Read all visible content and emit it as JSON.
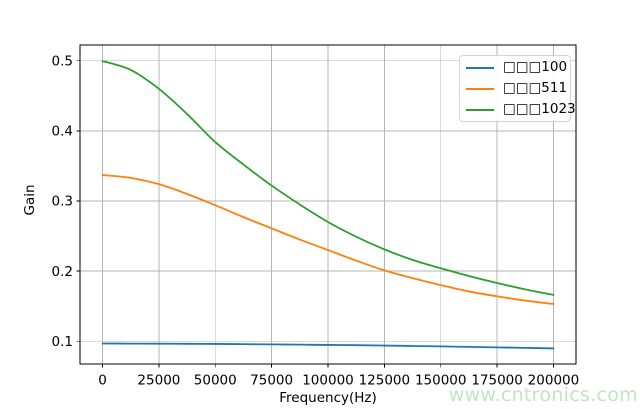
{
  "chart_data": {
    "type": "line",
    "title": "",
    "xlabel": "Frequency(Hz)",
    "ylabel": "Gain",
    "grid": true,
    "legend_position": "upper right",
    "xlim": [
      -10000,
      210000
    ],
    "ylim": [
      0.0675,
      0.5225
    ],
    "xticks": [
      0,
      25000,
      50000,
      75000,
      100000,
      125000,
      150000,
      175000,
      200000
    ],
    "xtick_labels": [
      "0",
      "25000",
      "50000",
      "75000",
      "100000",
      "125000",
      "150000",
      "175000",
      "200000"
    ],
    "yticks": [
      0.1,
      0.2,
      0.3,
      0.4,
      0.5
    ],
    "ytick_labels": [
      "0.1",
      "0.2",
      "0.3",
      "0.4",
      "0.5"
    ],
    "x": [
      0,
      12500,
      25000,
      37500,
      50000,
      62500,
      75000,
      87500,
      100000,
      112500,
      125000,
      137500,
      150000,
      162500,
      175000,
      187500,
      200000
    ],
    "series": [
      {
        "name": "□□□100",
        "color": "#1f77b4",
        "values": [
          0.0967,
          0.0966,
          0.0965,
          0.0963,
          0.0961,
          0.0958,
          0.0955,
          0.0951,
          0.0947,
          0.0943,
          0.0938,
          0.0932,
          0.0926,
          0.0919,
          0.0912,
          0.0905,
          0.0897
        ]
      },
      {
        "name": "□□□511",
        "color": "#ff7f0e",
        "values": [
          0.337,
          0.333,
          0.324,
          0.31,
          0.294,
          0.277,
          0.261,
          0.245,
          0.23,
          0.215,
          0.201,
          0.19,
          0.18,
          0.171,
          0.164,
          0.158,
          0.153
        ]
      },
      {
        "name": "□□□1023",
        "color": "#2ca02c",
        "values": [
          0.4995,
          0.487,
          0.46,
          0.424,
          0.384,
          0.352,
          0.322,
          0.295,
          0.27,
          0.249,
          0.231,
          0.216,
          0.204,
          0.193,
          0.183,
          0.174,
          0.166
        ]
      }
    ],
    "style": {
      "grid_color": "#b4b4b4",
      "spine_color": "#000000",
      "tick_color": "#000000",
      "line_width": 1.8,
      "tick_font_px": 13.5,
      "label_font_px": 13.5
    }
  },
  "watermark": {
    "text": "www.cntronics.com",
    "color": "#bfe6bd"
  }
}
